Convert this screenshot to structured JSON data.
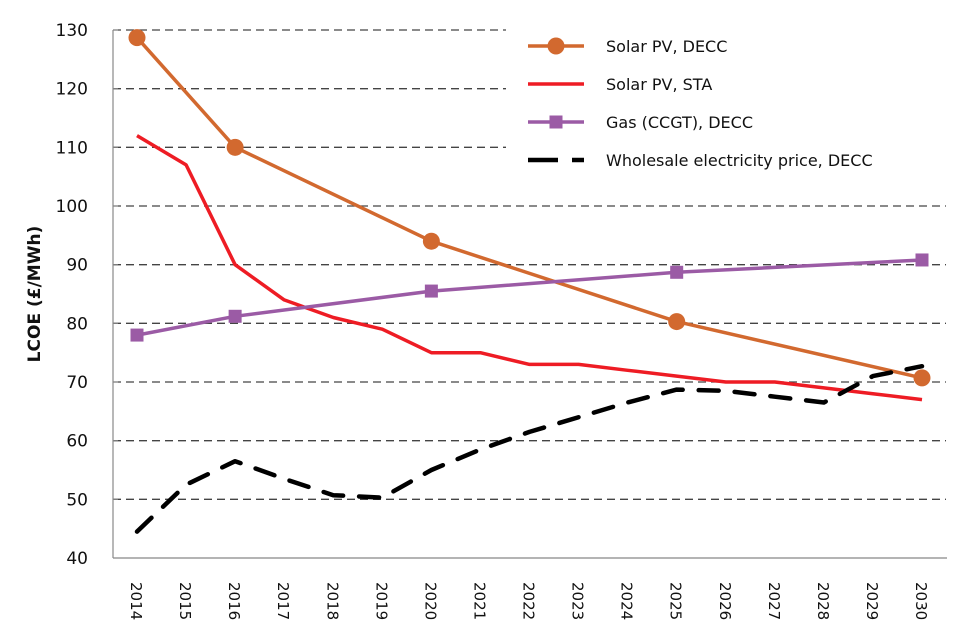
{
  "chart_data": {
    "type": "line",
    "title": "",
    "xlabel": "",
    "ylabel": "LCOE (£/MWh)",
    "ylim": [
      40,
      130
    ],
    "yticks": [
      40,
      50,
      60,
      70,
      80,
      90,
      100,
      110,
      120,
      130
    ],
    "grid": "horizontal-dashed",
    "legend_position": "top-right",
    "categories": [
      "2014",
      "2015",
      "2016",
      "2017",
      "2018",
      "2019",
      "2020",
      "2021",
      "2022",
      "2023",
      "2024",
      "2025",
      "2026",
      "2027",
      "2028",
      "2029",
      "2030"
    ],
    "series": [
      {
        "name": "Solar PV, DECC",
        "color": "#D2692F",
        "marker": "circle",
        "style": "solid",
        "points": [
          {
            "x": "2014",
            "y": 128.7
          },
          {
            "x": "2016",
            "y": 110
          },
          {
            "x": "2020",
            "y": 94
          },
          {
            "x": "2025",
            "y": 80.3
          },
          {
            "x": "2030",
            "y": 70.7
          }
        ]
      },
      {
        "name": "Solar PV, STA",
        "color": "#EE1C24",
        "marker": "none",
        "style": "solid",
        "points": [
          {
            "x": "2014",
            "y": 112
          },
          {
            "x": "2015",
            "y": 107
          },
          {
            "x": "2016",
            "y": 90
          },
          {
            "x": "2017",
            "y": 84
          },
          {
            "x": "2018",
            "y": 81
          },
          {
            "x": "2019",
            "y": 79
          },
          {
            "x": "2020",
            "y": 75
          },
          {
            "x": "2021",
            "y": 75
          },
          {
            "x": "2022",
            "y": 73
          },
          {
            "x": "2023",
            "y": 73
          },
          {
            "x": "2024",
            "y": 72
          },
          {
            "x": "2025",
            "y": 71
          },
          {
            "x": "2026",
            "y": 70
          },
          {
            "x": "2027",
            "y": 70
          },
          {
            "x": "2028",
            "y": 69
          },
          {
            "x": "2029",
            "y": 68
          },
          {
            "x": "2030",
            "y": 67
          }
        ]
      },
      {
        "name": "Gas (CCGT), DECC",
        "color": "#9B5BA5",
        "marker": "square",
        "style": "solid",
        "points": [
          {
            "x": "2014",
            "y": 78
          },
          {
            "x": "2016",
            "y": 81.2
          },
          {
            "x": "2020",
            "y": 85.5
          },
          {
            "x": "2025",
            "y": 88.7
          },
          {
            "x": "2030",
            "y": 90.8
          }
        ]
      },
      {
        "name": "Wholesale electricity price, DECC",
        "color": "#000000",
        "marker": "none",
        "style": "dashed",
        "points": [
          {
            "x": "2014",
            "y": 44.5
          },
          {
            "x": "2015",
            "y": 52.5
          },
          {
            "x": "2016",
            "y": 56.5
          },
          {
            "x": "2017",
            "y": 53.5
          },
          {
            "x": "2018",
            "y": 50.7
          },
          {
            "x": "2019",
            "y": 50.3
          },
          {
            "x": "2020",
            "y": 55
          },
          {
            "x": "2021",
            "y": 58.5
          },
          {
            "x": "2022",
            "y": 61.5
          },
          {
            "x": "2023",
            "y": 64
          },
          {
            "x": "2024",
            "y": 66.5
          },
          {
            "x": "2025",
            "y": 68.7
          },
          {
            "x": "2026",
            "y": 68.5
          },
          {
            "x": "2027",
            "y": 67.5
          },
          {
            "x": "2028",
            "y": 66.5
          },
          {
            "x": "2029",
            "y": 71
          },
          {
            "x": "2030",
            "y": 72.7
          }
        ]
      }
    ]
  }
}
